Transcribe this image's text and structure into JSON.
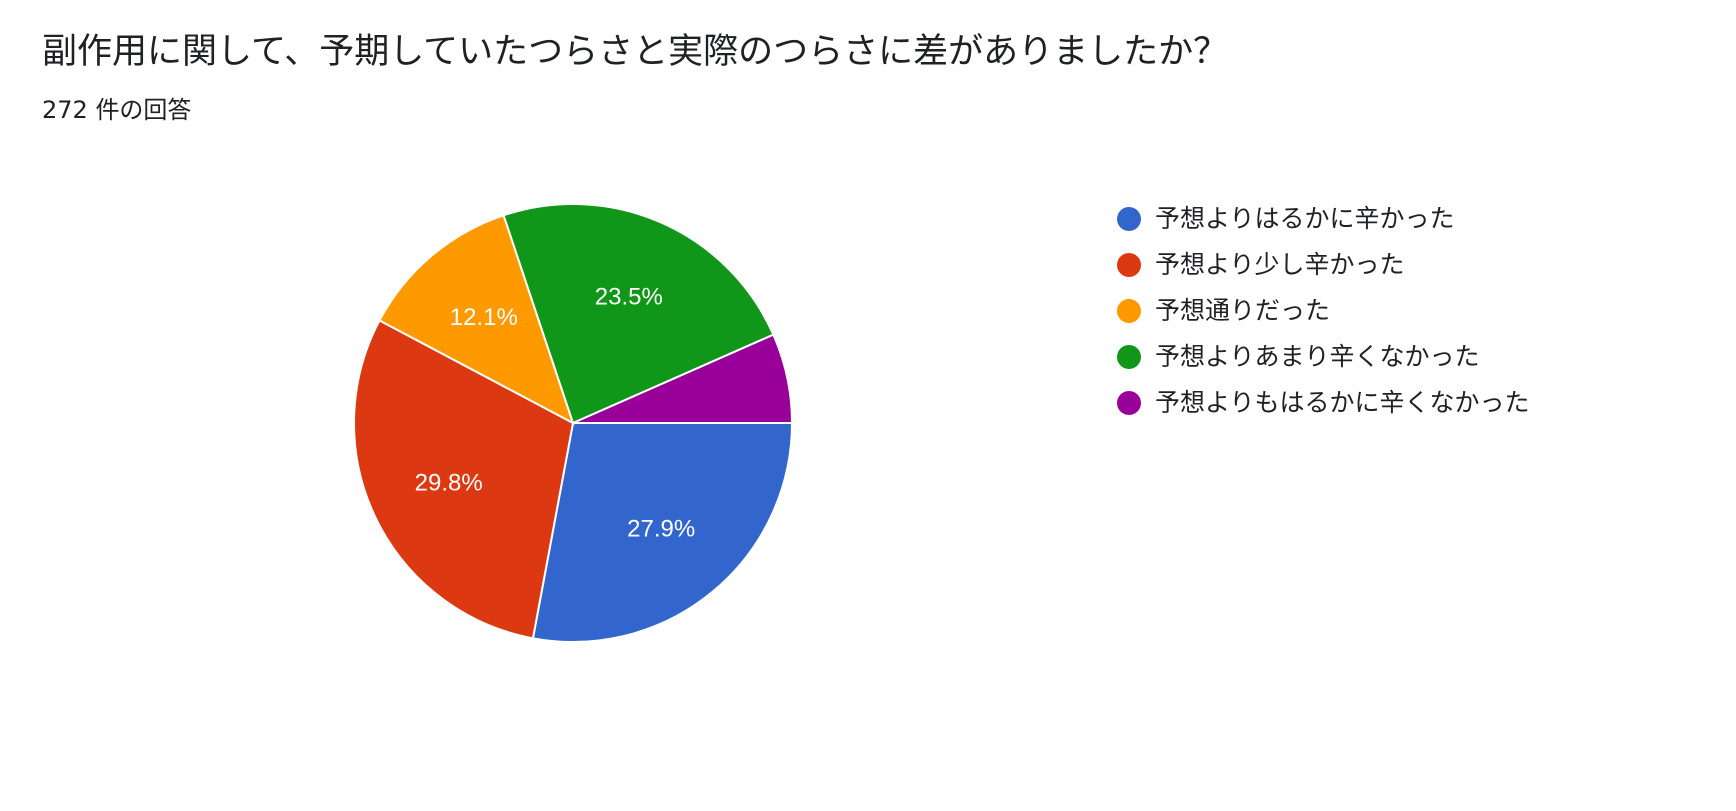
{
  "header": {
    "title": "副作用に関して、予期していたつらさと実際のつらさに差がありましたか？",
    "responses": "272 件の回答"
  },
  "chart_data": {
    "type": "pie",
    "title": "副作用に関して、予期していたつらさと実際のつらさに差がありましたか？",
    "subtitle": "272 件の回答",
    "categories": [
      "予想よりはるかに辛かった",
      "予想より少し辛かった",
      "予想通りだった",
      "予想よりあまり辛くなかった",
      "予想よりもはるかに辛くなかった"
    ],
    "values": [
      27.9,
      29.8,
      12.1,
      23.5,
      6.6
    ],
    "data_labels": [
      "27.9%",
      "29.8%",
      "12.1%",
      "23.5%",
      ""
    ],
    "colors": [
      "#3366cc",
      "#dc3912",
      "#ff9900",
      "#109618",
      "#990099"
    ],
    "legend_position": "right"
  }
}
